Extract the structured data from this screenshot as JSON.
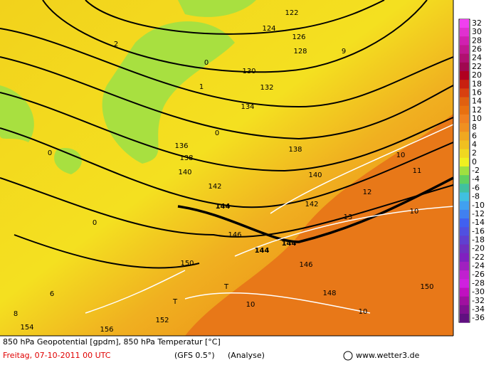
{
  "colorbar": {
    "labels": [
      32,
      30,
      28,
      26,
      24,
      22,
      20,
      18,
      16,
      14,
      12,
      10,
      8,
      6,
      4,
      2,
      0,
      -2,
      -4,
      -6,
      -8,
      -10,
      -12,
      -14,
      -16,
      -18,
      -20,
      -22,
      -24,
      -26,
      -28,
      -30,
      -32,
      -34,
      -36
    ],
    "colors": [
      "#f040f0",
      "#e030d0",
      "#d020b0",
      "#c01890",
      "#b01070",
      "#a00850",
      "#b00020",
      "#c82010",
      "#d84010",
      "#e06010",
      "#e87010",
      "#f08020",
      "#f09020",
      "#f0a820",
      "#f0c020",
      "#f0d820",
      "#f0f020",
      "#a0e040",
      "#60d060",
      "#40c0a0",
      "#40c0e0",
      "#40a0f0",
      "#4080f0",
      "#4060f0",
      "#5050e0",
      "#6040d0",
      "#7030c0",
      "#8020c0",
      "#a020c0",
      "#c020d0",
      "#d020e0",
      "#c010c0",
      "#a010a0",
      "#801090",
      "#601080"
    ]
  },
  "map_labels": [
    "122",
    "124",
    "126",
    "128",
    "130",
    "132",
    "134",
    "136",
    "138",
    "138",
    "140",
    "140",
    "142",
    "142",
    "144",
    "144",
    "144",
    "146",
    "146",
    "148",
    "150",
    "150",
    "152",
    "154",
    "156",
    "10",
    "10",
    "10",
    "10",
    "11",
    "12",
    "13",
    "0",
    "0",
    "0",
    "0",
    "9",
    "T",
    "T",
    "2",
    "1",
    "8",
    "6"
  ],
  "footer": {
    "line1": "850 hPa Geopotential [gpdm], 850 hPa Temperatur [°C]",
    "date": "Freitag, 07-10-2011  00 UTC",
    "model": "(GFS 0.5°)",
    "analysis": "(Analyse)",
    "credit": "www.wetter3.de"
  }
}
